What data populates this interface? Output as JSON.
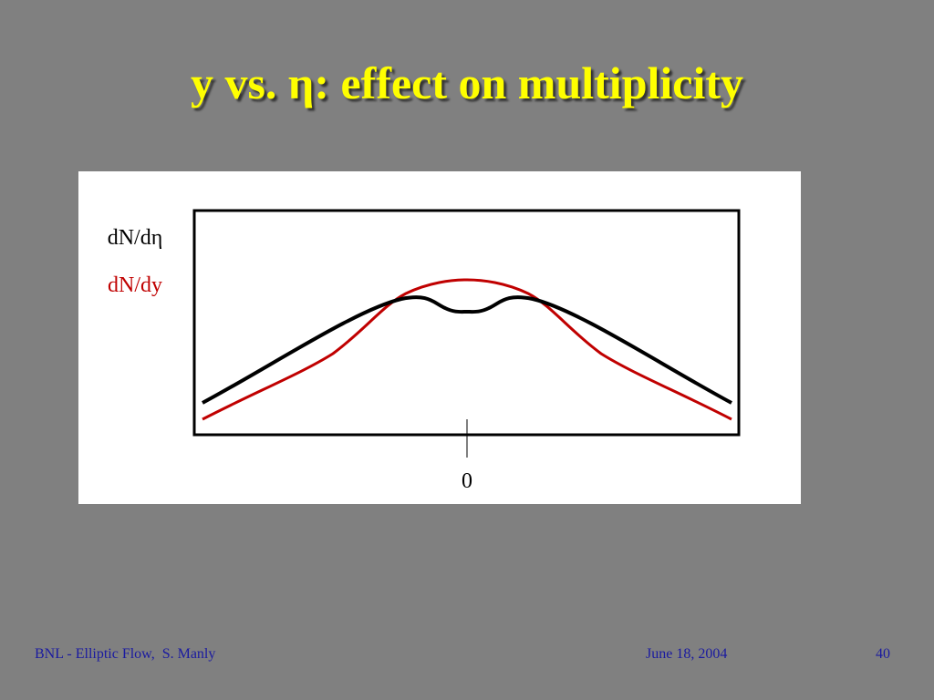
{
  "title": "y vs. η: effect on multiplicity",
  "figure": {
    "labels": {
      "deta": "dN/dη",
      "dy": "dN/dy",
      "zero": "0"
    }
  },
  "footer": {
    "left": "BNL - Elliptic Flow,  S. Manly",
    "date": "June 18, 2004",
    "page": "40"
  }
}
